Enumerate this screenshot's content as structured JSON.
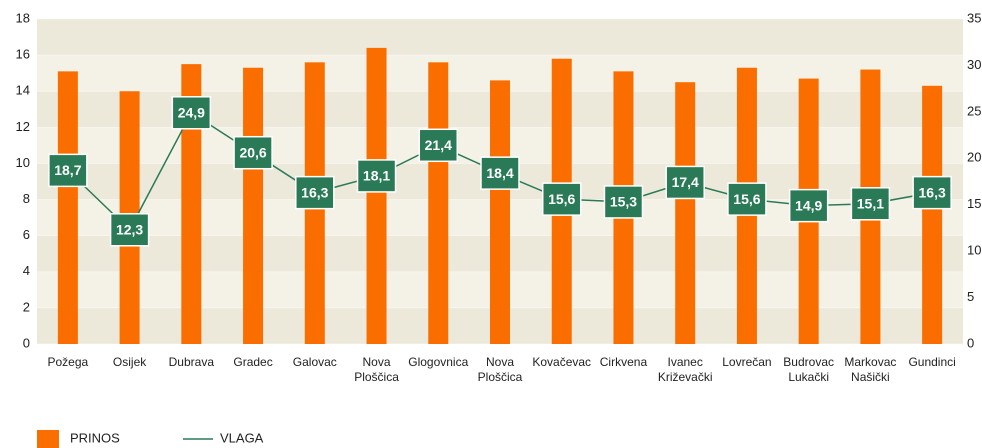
{
  "chart_data": {
    "type": "bar",
    "categories": [
      "Požega",
      "Osijek",
      "Dubrava",
      "Gradec",
      "Galovac",
      "Nova Ploščica",
      "Glogovnica",
      "Nova Ploščica",
      "Kovačevac",
      "Cirkvena",
      "Ivanec Križevački",
      "Lovrečan",
      "Budrovac Lukački",
      "Markovac Našički",
      "Gundinci"
    ],
    "series": [
      {
        "name": "PRINOS",
        "type": "bar",
        "color": "#fa6e00",
        "values": [
          15.1,
          14.0,
          15.5,
          15.3,
          15.6,
          16.4,
          15.6,
          14.6,
          15.8,
          15.1,
          14.5,
          15.3,
          14.7,
          15.2,
          14.3
        ]
      },
      {
        "name": "VLAGA",
        "type": "line",
        "axis": "y2",
        "color": "#2a7a57",
        "values": [
          18.7,
          12.3,
          24.9,
          20.6,
          16.3,
          18.1,
          21.4,
          18.4,
          15.6,
          15.3,
          17.4,
          15.6,
          14.9,
          15.1,
          16.3
        ],
        "value_labels": [
          "18,7",
          "12,3",
          "24,9",
          "20,6",
          "16,3",
          "18,1",
          "21,4",
          "18,4",
          "15,6",
          "15,3",
          "17,4",
          "15,6",
          "14,9",
          "15,1",
          "16,3"
        ]
      }
    ],
    "ylim": [
      0,
      18
    ],
    "yticks": [
      0,
      2,
      4,
      6,
      8,
      10,
      12,
      14,
      16,
      18
    ],
    "y2lim": [
      0,
      35
    ],
    "y2ticks": [
      0,
      5,
      10,
      15,
      20,
      25,
      30,
      35
    ],
    "grid": true
  }
}
